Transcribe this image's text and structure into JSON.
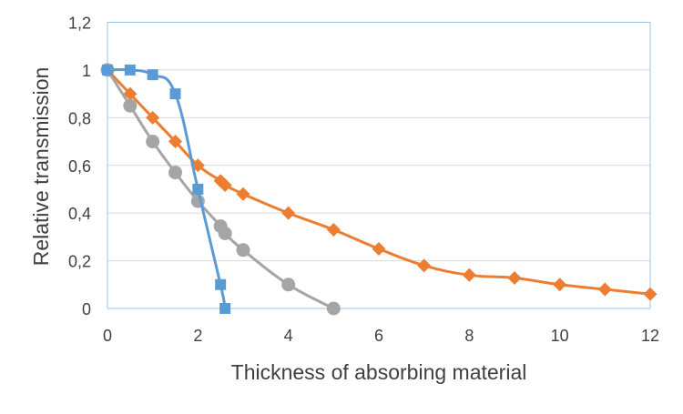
{
  "chart_data": {
    "type": "line",
    "title": "",
    "xlabel": "Thickness of absorbing material",
    "ylabel": "Relative transmission",
    "xlim": [
      0,
      12
    ],
    "ylim": [
      0,
      1.2
    ],
    "xticks": [
      "0",
      "2",
      "4",
      "6",
      "8",
      "10",
      "12"
    ],
    "yticks": [
      "0",
      "0,2",
      "0,4",
      "0,6",
      "0,8",
      "1",
      "1,2"
    ],
    "grid": "horizontal",
    "smoothed": true,
    "series": [
      {
        "color": "#5b9bd5",
        "marker": "square",
        "points": [
          [
            0,
            1
          ],
          [
            0.5,
            1
          ],
          [
            1,
            0.98
          ],
          [
            1.5,
            0.9
          ],
          [
            2,
            0.5
          ],
          [
            2.5,
            0.1
          ],
          [
            2.6,
            0
          ]
        ]
      },
      {
        "color": "#ed7d31",
        "marker": "diamond",
        "points": [
          [
            0,
            1
          ],
          [
            0.5,
            0.9
          ],
          [
            1,
            0.8
          ],
          [
            1.5,
            0.7
          ],
          [
            2,
            0.6
          ],
          [
            2.5,
            0.535
          ],
          [
            2.6,
            0.517
          ],
          [
            3,
            0.48
          ],
          [
            4,
            0.4
          ],
          [
            5,
            0.33
          ],
          [
            6,
            0.25
          ],
          [
            7,
            0.18
          ],
          [
            8,
            0.14
          ],
          [
            9,
            0.128
          ],
          [
            10,
            0.1
          ],
          [
            11,
            0.08
          ],
          [
            12,
            0.06
          ]
        ]
      },
      {
        "color": "#a5a5a5",
        "marker": "circle",
        "points": [
          [
            0,
            1
          ],
          [
            0.5,
            0.85
          ],
          [
            1,
            0.7
          ],
          [
            1.5,
            0.57
          ],
          [
            2,
            0.45
          ],
          [
            2.5,
            0.345
          ],
          [
            2.6,
            0.315
          ],
          [
            3,
            0.245
          ],
          [
            4,
            0.1
          ],
          [
            5,
            0
          ]
        ]
      }
    ]
  }
}
